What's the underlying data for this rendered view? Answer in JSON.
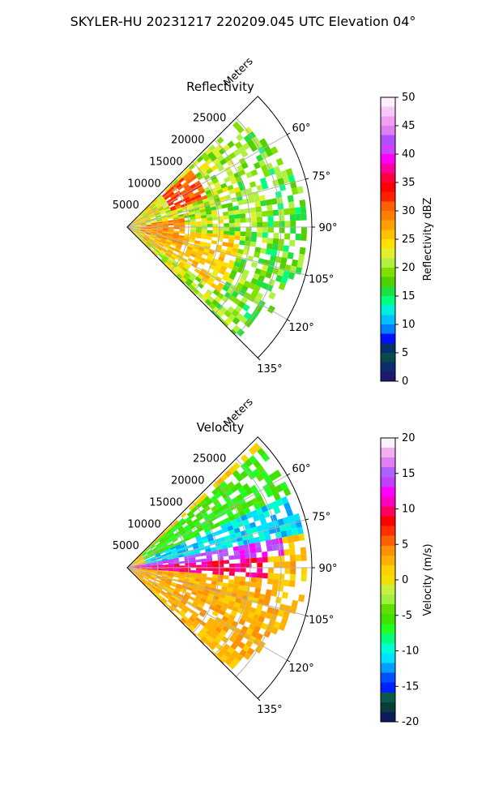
{
  "figure": {
    "suptitle": "SKYLER-HU  20231217  220209.045 UTC Elevation 04°"
  },
  "chart_data": [
    {
      "type": "heatmap",
      "projection": "polar-sector",
      "title": "Reflectivity",
      "radial_axis_label": "Meters",
      "radial_ticks": [
        5000,
        10000,
        15000,
        20000,
        25000
      ],
      "radial_range": [
        0,
        30000
      ],
      "angle_ticks_deg": [
        60,
        75,
        90,
        105,
        120,
        135
      ],
      "angle_tick_labels": [
        "60°",
        "75°",
        "90°",
        "105°",
        "120°",
        "135°"
      ],
      "angle_range_deg": [
        45,
        135
      ],
      "grid": true,
      "colorbar": {
        "label": "Reflectivity dBZ",
        "ticks": [
          0,
          5,
          10,
          15,
          20,
          25,
          30,
          35,
          40,
          45,
          50
        ],
        "range": [
          0,
          50
        ]
      },
      "field_regions": [
        {
          "angle_deg": [
            48,
            70
          ],
          "range_m": [
            7000,
            13000
          ],
          "value": 33
        },
        {
          "angle_deg": [
            82,
            108
          ],
          "range_m": [
            2000,
            9000
          ],
          "value": 28
        },
        {
          "angle_deg": [
            95,
            125
          ],
          "range_m": [
            3000,
            18000
          ],
          "value": 22
        }
      ]
    },
    {
      "type": "heatmap",
      "projection": "polar-sector",
      "title": "Velocity",
      "radial_axis_label": "Meters",
      "radial_ticks": [
        5000,
        10000,
        15000,
        20000,
        25000
      ],
      "radial_range": [
        0,
        30000
      ],
      "angle_ticks_deg": [
        60,
        75,
        90,
        105,
        120,
        135
      ],
      "angle_tick_labels": [
        "60°",
        "75°",
        "90°",
        "105°",
        "120°",
        "135°"
      ],
      "angle_range_deg": [
        45,
        135
      ],
      "grid": true,
      "colorbar": {
        "label": "Velocity (m/s)",
        "ticks": [
          -20,
          -15,
          -10,
          -5,
          0,
          5,
          10,
          15,
          20
        ],
        "range": [
          -20,
          20
        ]
      },
      "field_regions": [
        {
          "angle_deg": [
            48,
            66
          ],
          "range_m": [
            3000,
            30000
          ],
          "value": -6
        },
        {
          "angle_deg": [
            66,
            80
          ],
          "range_m": [
            3000,
            30000
          ],
          "value": -11
        },
        {
          "angle_deg": [
            78,
            86
          ],
          "range_m": [
            0,
            25000
          ],
          "value": 14
        },
        {
          "angle_deg": [
            85,
            95
          ],
          "range_m": [
            0,
            22000
          ],
          "value": 10
        },
        {
          "angle_deg": [
            95,
            130
          ],
          "range_m": [
            0,
            25000
          ],
          "value": 3
        }
      ]
    }
  ],
  "colors": {
    "grid": "#b0b0b0",
    "reflectivity_scale": [
      "#1a1a6e",
      "#0c2c6b",
      "#0a4a4a",
      "#06306a",
      "#0010ff",
      "#0080ff",
      "#00c0ff",
      "#00eedd",
      "#00ff80",
      "#20e040",
      "#50d000",
      "#80e000",
      "#b0f040",
      "#e0f030",
      "#ffe000",
      "#ffc000",
      "#ffa000",
      "#ff8000",
      "#ff6000",
      "#ff2000",
      "#ff0000",
      "#ff0040",
      "#ff00a0",
      "#ff00ff",
      "#d040ff",
      "#b050ff",
      "#e080f0",
      "#f0a0f0",
      "#f8c8f8",
      "#fff0ff"
    ],
    "velocity_scale": [
      "#0c1c5c",
      "#0b3c3c",
      "#0a5a4a",
      "#0020ff",
      "#0050ff",
      "#00a0ff",
      "#00e0ff",
      "#00ffd0",
      "#00ff80",
      "#20ff20",
      "#40e000",
      "#60e000",
      "#a0f040",
      "#c8f040",
      "#f0e000",
      "#ffd000",
      "#ffb000",
      "#ff9000",
      "#ff6000",
      "#ff3000",
      "#ff0000",
      "#ff0060",
      "#ff00c0",
      "#ff00ff",
      "#c040ff",
      "#b060ff",
      "#e080f0",
      "#f0b0f0",
      "#fff0ff"
    ]
  }
}
